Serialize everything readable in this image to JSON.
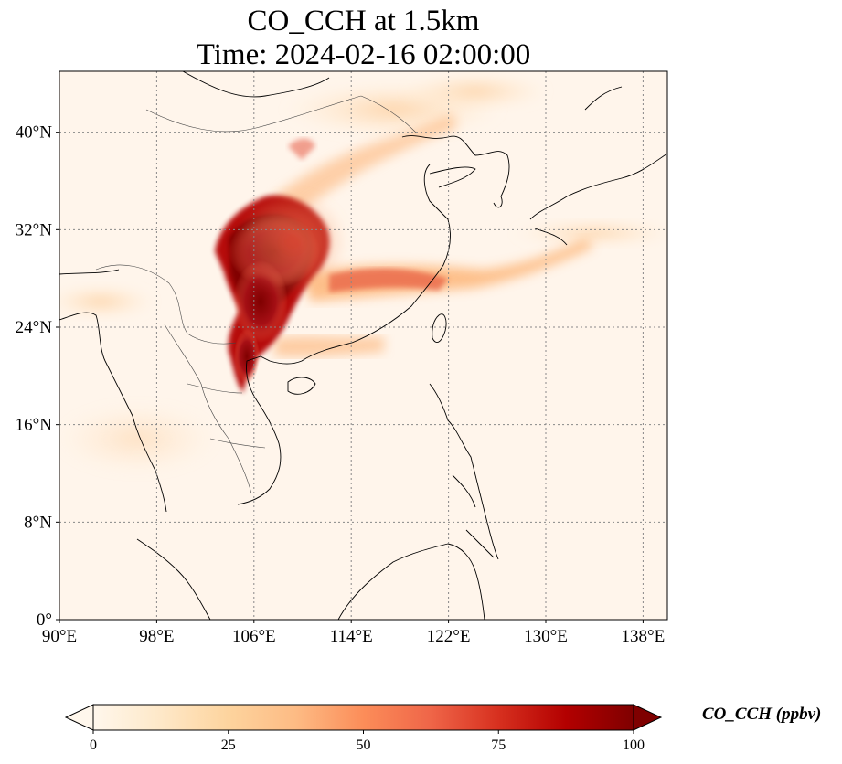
{
  "title": {
    "line1": "CO_CCH at 1.5km",
    "line2": "Time: 2024-02-16 02:00:00"
  },
  "map": {
    "lon_range": [
      90,
      140
    ],
    "lat_range": [
      0,
      45
    ],
    "lon_ticks": [
      {
        "value": 90,
        "label": "90°E"
      },
      {
        "value": 98,
        "label": "98°E"
      },
      {
        "value": 106,
        "label": "106°E"
      },
      {
        "value": 114,
        "label": "114°E"
      },
      {
        "value": 122,
        "label": "122°E"
      },
      {
        "value": 130,
        "label": "130°E"
      },
      {
        "value": 138,
        "label": "138°E"
      }
    ],
    "lat_ticks": [
      {
        "value": 0,
        "label": "0°"
      },
      {
        "value": 8,
        "label": "8°N"
      },
      {
        "value": 16,
        "label": "16°N"
      },
      {
        "value": 24,
        "label": "24°N"
      },
      {
        "value": 32,
        "label": "32°N"
      },
      {
        "value": 40,
        "label": "40°N"
      }
    ],
    "gridlines": true,
    "colors": {
      "background": "#fff5eb",
      "coastline": "#000000",
      "border": "#333333",
      "grid": "#888888"
    },
    "high_concentration_region": "Sichuan Basin / South China, peak > 100 ppbv near 104–109°E, 20–34°N"
  },
  "colorbar": {
    "label": "CO_CCH (ppbv)",
    "min": 0,
    "max": 100,
    "extend": "both",
    "ticks": [
      {
        "value": 0,
        "label": "0"
      },
      {
        "value": 25,
        "label": "25"
      },
      {
        "value": 50,
        "label": "50"
      },
      {
        "value": 75,
        "label": "75"
      },
      {
        "value": 100,
        "label": "100"
      }
    ],
    "colormap": "OrRd",
    "stops": [
      "#fff7ec",
      "#fee8c8",
      "#fdd49e",
      "#fdbb84",
      "#fc8d59",
      "#ef6548",
      "#d7301f",
      "#b30000",
      "#7f0000"
    ]
  }
}
